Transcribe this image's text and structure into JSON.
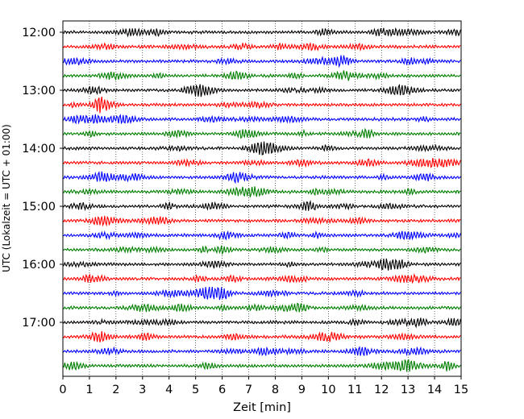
{
  "chart_data": {
    "type": "line",
    "title": "",
    "xlabel": "Zeit  [min]",
    "ylabel": "UTC (Lokalzeit = UTC + 01:00)",
    "xlim": [
      0,
      15
    ],
    "xticks": [
      "0",
      "1",
      "2",
      "3",
      "4",
      "5",
      "6",
      "7",
      "8",
      "9",
      "10",
      "11",
      "12",
      "13",
      "14",
      "15"
    ],
    "yticks": [
      "12:00",
      "13:00",
      "14:00",
      "15:00",
      "16:00",
      "17:00"
    ],
    "row_start_times": [
      "12:00",
      "12:15",
      "12:30",
      "12:45",
      "13:00",
      "13:15",
      "13:30",
      "13:45",
      "14:00",
      "14:15",
      "14:30",
      "14:45",
      "15:00",
      "15:15",
      "15:30",
      "15:45",
      "16:00",
      "16:15",
      "16:30",
      "16:45",
      "17:00",
      "17:15",
      "17:30",
      "17:45"
    ],
    "series_colors": [
      "#000000",
      "#ff0000",
      "#0000ff",
      "#007f00"
    ],
    "grid": "vertical dotted at each minute"
  }
}
